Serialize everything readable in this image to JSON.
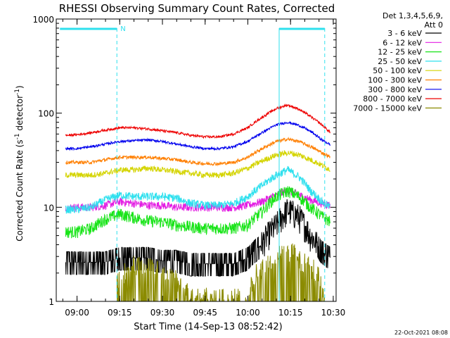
{
  "chart_data": {
    "type": "line",
    "title": "RHESSI Observing Summary Count Rates, Corrected",
    "xlabel": "Start Time (14-Sep-13 08:52:42)",
    "ylabel_main": "Corrected Count Rate (s",
    "ylabel_sup1": "-1",
    "ylabel_mid": " detector",
    "ylabel_sup2": "-1",
    "ylabel_end": ")",
    "yscale": "log",
    "ylim": [
      1,
      1000
    ],
    "xlim_minutes": [
      8.8667,
      10.5167
    ],
    "x_ticks": [
      "09:00",
      "09:15",
      "09:30",
      "09:45",
      "10:00",
      "10:15",
      "10:30"
    ],
    "y_ticks": [
      "1",
      "10",
      "100",
      "1000"
    ],
    "legend_header_1": "Det 1,3,4,5,6,9,",
    "legend_header_2": "Att 0",
    "legend_position": "right",
    "series": [
      {
        "name": "3 - 6 keV",
        "color": "#000000",
        "x": [
          "08:56",
          "09:00",
          "09:05",
          "09:10",
          "09:15",
          "09:20",
          "09:25",
          "09:30",
          "09:35",
          "09:40",
          "09:45",
          "09:50",
          "09:55",
          "10:00",
          "10:05",
          "10:10",
          "10:14",
          "10:18",
          "10:22",
          "10:26",
          "10:29"
        ],
        "y": [
          2.7,
          2.7,
          2.7,
          2.7,
          3.0,
          3.0,
          3.0,
          2.8,
          2.8,
          2.6,
          2.6,
          2.6,
          2.6,
          3.0,
          4.2,
          6.5,
          9.5,
          8.0,
          5.0,
          3.5,
          3.0
        ],
        "noise": 0.35
      },
      {
        "name": "6 - 12 keV",
        "color": "#e31ee3",
        "x": [
          "08:56",
          "09:00",
          "09:05",
          "09:10",
          "09:15",
          "09:20",
          "09:25",
          "09:30",
          "09:35",
          "09:40",
          "09:45",
          "09:50",
          "09:55",
          "10:00",
          "10:05",
          "10:10",
          "10:14",
          "10:18",
          "10:22",
          "10:26",
          "10:29"
        ],
        "y": [
          10,
          10,
          10,
          10.5,
          11.5,
          11,
          10.5,
          10.5,
          10,
          10,
          10,
          10,
          10,
          10.5,
          11.5,
          13.5,
          15,
          13.5,
          12,
          11,
          10.5
        ],
        "noise": 0.1
      },
      {
        "name": "12 - 25 keV",
        "color": "#18e418",
        "x": [
          "08:56",
          "09:00",
          "09:05",
          "09:10",
          "09:15",
          "09:20",
          "09:25",
          "09:30",
          "09:35",
          "09:40",
          "09:45",
          "09:50",
          "09:55",
          "10:00",
          "10:05",
          "10:10",
          "10:14",
          "10:18",
          "10:22",
          "10:26",
          "10:29"
        ],
        "y": [
          5.5,
          5.5,
          6.0,
          7.5,
          8.5,
          7.8,
          7.2,
          7.0,
          6.5,
          6.2,
          6.0,
          6.0,
          6.0,
          6.5,
          9.0,
          13,
          15,
          13,
          10,
          8,
          7
        ],
        "noise": 0.15
      },
      {
        "name": "25 - 50 keV",
        "color": "#2ee0ee",
        "x": [
          "08:56",
          "09:00",
          "09:05",
          "09:10",
          "09:15",
          "09:20",
          "09:25",
          "09:30",
          "09:35",
          "09:40",
          "09:45",
          "09:50",
          "09:55",
          "10:00",
          "10:05",
          "10:10",
          "10:14",
          "10:18",
          "10:22",
          "10:26",
          "10:29"
        ],
        "y": [
          9.5,
          9.5,
          10,
          12,
          13.5,
          13,
          13,
          13,
          12.5,
          11,
          10.5,
          10.5,
          11,
          13,
          17,
          22,
          25,
          21,
          15,
          11.5,
          10
        ],
        "noise": 0.1
      },
      {
        "name": "50 - 100 keV",
        "color": "#d4d400",
        "x": [
          "08:56",
          "09:00",
          "09:05",
          "09:10",
          "09:15",
          "09:20",
          "09:25",
          "09:30",
          "09:35",
          "09:40",
          "09:45",
          "09:50",
          "09:55",
          "10:00",
          "10:05",
          "10:10",
          "10:14",
          "10:18",
          "10:22",
          "10:26",
          "10:29"
        ],
        "y": [
          22,
          22,
          22,
          23,
          25,
          25,
          26,
          25,
          24,
          23,
          22,
          22,
          23,
          26,
          31,
          36,
          38,
          36,
          32,
          28,
          25
        ],
        "noise": 0.07
      },
      {
        "name": "100 - 300 keV",
        "color": "#ff7f00",
        "x": [
          "08:56",
          "09:00",
          "09:05",
          "09:10",
          "09:15",
          "09:20",
          "09:25",
          "09:30",
          "09:35",
          "09:40",
          "09:45",
          "09:50",
          "09:55",
          "10:00",
          "10:05",
          "10:10",
          "10:14",
          "10:18",
          "10:22",
          "10:26",
          "10:29"
        ],
        "y": [
          30,
          30,
          30,
          32,
          34,
          34,
          34,
          33,
          32,
          30,
          29,
          29,
          30,
          34,
          42,
          50,
          53,
          50,
          44,
          38,
          34
        ],
        "noise": 0.04
      },
      {
        "name": "300 - 800 keV",
        "color": "#0000ee",
        "x": [
          "08:56",
          "09:00",
          "09:05",
          "09:10",
          "09:15",
          "09:20",
          "09:25",
          "09:30",
          "09:35",
          "09:40",
          "09:45",
          "09:50",
          "09:55",
          "10:00",
          "10:05",
          "10:10",
          "10:14",
          "10:18",
          "10:22",
          "10:26",
          "10:29"
        ],
        "y": [
          42,
          42,
          44,
          47,
          50,
          51,
          52,
          50,
          47,
          44,
          42,
          42,
          44,
          50,
          62,
          75,
          80,
          74,
          64,
          52,
          46
        ],
        "noise": 0.03
      },
      {
        "name": "800 - 7000 keV",
        "color": "#ee0000",
        "x": [
          "08:56",
          "09:00",
          "09:05",
          "09:10",
          "09:15",
          "09:20",
          "09:25",
          "09:30",
          "09:35",
          "09:40",
          "09:45",
          "09:50",
          "09:55",
          "10:00",
          "10:05",
          "10:10",
          "10:14",
          "10:18",
          "10:22",
          "10:26",
          "10:29"
        ],
        "y": [
          58,
          59,
          62,
          66,
          70,
          70,
          68,
          65,
          62,
          58,
          56,
          56,
          60,
          70,
          90,
          112,
          122,
          110,
          92,
          75,
          62
        ],
        "noise": 0.03
      },
      {
        "name": "7000 - 15000 keV",
        "color": "#8b8b00",
        "x": [
          "09:14",
          "09:20",
          "09:30",
          "09:40",
          "09:50",
          "10:00",
          "10:03",
          "10:08",
          "10:12",
          "10:16",
          "10:20",
          "10:24",
          "10:27"
        ],
        "y": [
          1.5,
          2.2,
          2.0,
          1.0,
          1.0,
          1.0,
          1.8,
          2.5,
          3.0,
          3.0,
          2.4,
          1.9,
          1.0
        ],
        "noise": 0.5
      }
    ],
    "attenuator_bars": {
      "color": "#2ee0ee",
      "label_N": "N",
      "spans": [
        [
          "08:54",
          "09:14"
        ],
        [
          "10:11",
          "10:27"
        ]
      ]
    },
    "vertical_markers": [
      {
        "time": "09:14",
        "style": "dashed",
        "color": "#2ee0ee"
      },
      {
        "time": "10:11",
        "style": "solid",
        "color": "#2ee0ee"
      },
      {
        "time": "10:27",
        "style": "dashed",
        "color": "#2ee0ee"
      }
    ]
  },
  "footer_timestamp": "22-Oct-2021 08:08"
}
